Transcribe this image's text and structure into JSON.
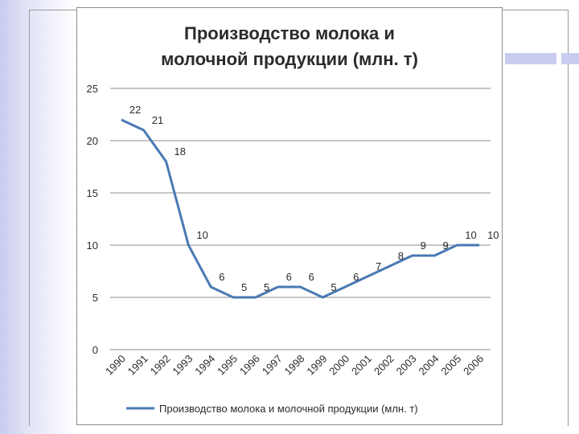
{
  "chart_data": {
    "type": "line",
    "title_line1": "Производство молока и",
    "title_line2": "молочной продукции (млн. т)",
    "title": "Производство молока и молочной продукции (млн. т)",
    "xlabel": "",
    "ylabel": "",
    "ylim": [
      0,
      25
    ],
    "yticks": [
      "0",
      "5",
      "10",
      "15",
      "20",
      "25"
    ],
    "ytick_values": [
      0,
      5,
      10,
      15,
      20,
      25
    ],
    "categories": [
      "1990",
      "1991",
      "1992",
      "1993",
      "1994",
      "1995",
      "1996",
      "1997",
      "1998",
      "1999",
      "2000",
      "2001",
      "2002",
      "2003",
      "2004",
      "2005",
      "2006"
    ],
    "series": [
      {
        "name": "Производство молока и молочной продукции (млн. т)",
        "values": [
          22,
          21,
          18,
          10,
          6,
          5,
          5,
          6,
          6,
          5,
          6,
          7,
          8,
          9,
          9,
          10,
          10
        ],
        "labels": [
          "22",
          "21",
          "18",
          "10",
          "6",
          "5",
          "5",
          "6",
          "6",
          "5",
          "6",
          "7",
          "8",
          "9",
          "9",
          "10",
          "10"
        ]
      }
    ],
    "grid": true,
    "legend": "bottom",
    "line_color": "#4a7ab4"
  }
}
